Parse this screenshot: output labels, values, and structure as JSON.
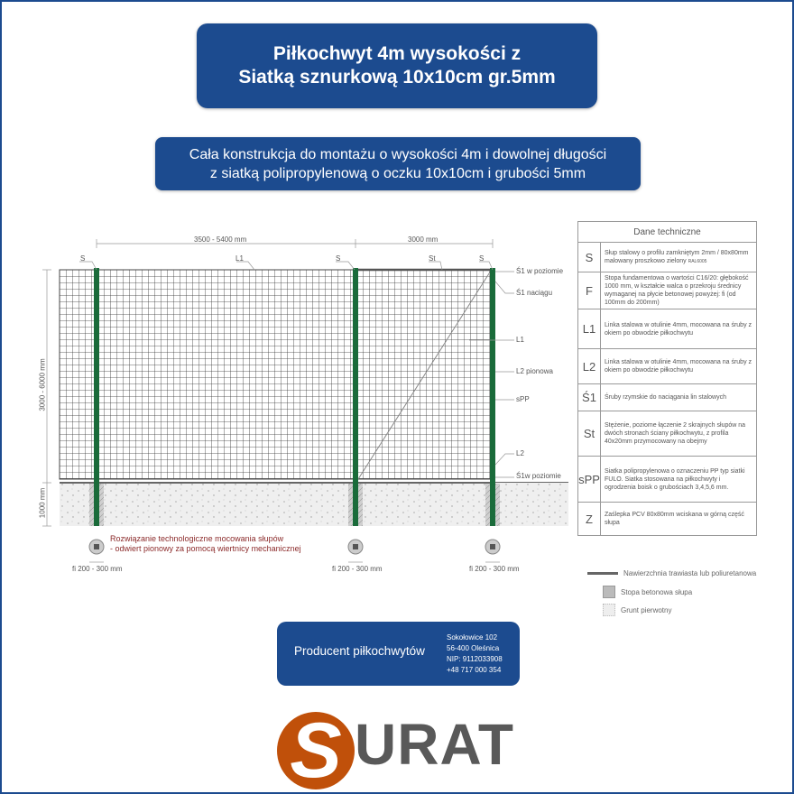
{
  "header": {
    "title_line1": "Piłkochwyt 4m wysokości z",
    "title_line2": "Siatką sznurkową 10x10cm gr.5mm",
    "subtitle_line1": "Cała konstrukcja do montażu o wysokości 4m i dowolnej długości",
    "subtitle_line2": "z siatką polipropylenową o oczku 10x10cm i grubości 5mm"
  },
  "diagram": {
    "dim_width_left": "3500 - 5400 mm",
    "dim_width_right": "3000 mm",
    "dim_height": "3000 - 6000 mm",
    "dim_ground": "1000 mm",
    "top_labels": [
      "S",
      "L1",
      "S",
      "St",
      "S"
    ],
    "side_labels": [
      "Ś1 w poziomie",
      "Ś1 naciągu",
      "L1",
      "L2 pionowa",
      "sPP",
      "L2",
      "Ś1w poziomie"
    ],
    "footing_label": "fi 200 - 300 mm",
    "mounting_note_line1": "Rozwiązanie technologiczne mocowania słupów",
    "mounting_note_line2": "- odwiert pionowy za pomocą wiertnicy mechanicznej",
    "colors": {
      "post": "#1a6b3a",
      "mesh": "#333333",
      "note": "#8b2a2a"
    }
  },
  "tech_table": {
    "title": "Dane techniczne",
    "rows": [
      {
        "code": "S",
        "text": "Słup stalowy o profilu zamkniętym 2mm / 80x80mm malowany proszkowo zielony",
        "small": "RAL6005"
      },
      {
        "code": "F",
        "text": "Stopa fundamentowa o wartości C16/20: głębokość 1000 mm, w kształcie walca o przekroju średnicy wymaganej na płycie betonowej powyżej:  fi (od 100mm do 200mm)"
      },
      {
        "code": "L1",
        "text": "Linka stalowa w otulinie 4mm, mocowana na śruby z okiem po obwodzie piłkochwytu"
      },
      {
        "code": "L2",
        "text": "Linka stalowa w otulinie 4mm, mocowana na śruby z okiem po obwodzie piłkochwytu"
      },
      {
        "code": "Ś1",
        "text": "Śruby rzymskie do naciągania lin stalowych"
      },
      {
        "code": "St",
        "text": "Stężenie, poziome łączenie 2 skrajnych słupów na dwóch stronach ściany piłkochwytu, z profila 40x20mm przymocowany na obejmy"
      },
      {
        "code": "sPP",
        "text": "Siatka polipropylenowa o oznaczeniu PP typ siatki FULO. Siatka stosowana na piłkochwyty i ogrodzenia boisk o grubościach 3,4,5,6 mm."
      },
      {
        "code": "Z",
        "text": "Zaślepka PCV 80x80mm wciskana w górną część słupa"
      }
    ]
  },
  "legend": [
    "Nawierzchnia trawiasta lub poliuretanowa",
    "Stopa betonowa słupa",
    "Grunt pierwotny"
  ],
  "producer": {
    "label": "Producent piłkochwytów",
    "address": [
      "Sokołowice 102",
      "56-400 Oleśnica",
      "NIP: 9112033908",
      "+48 717 000 354"
    ]
  },
  "logo": {
    "text": "SURAT",
    "accent": "#c0500a"
  },
  "brand_color": "#1c4b8f"
}
